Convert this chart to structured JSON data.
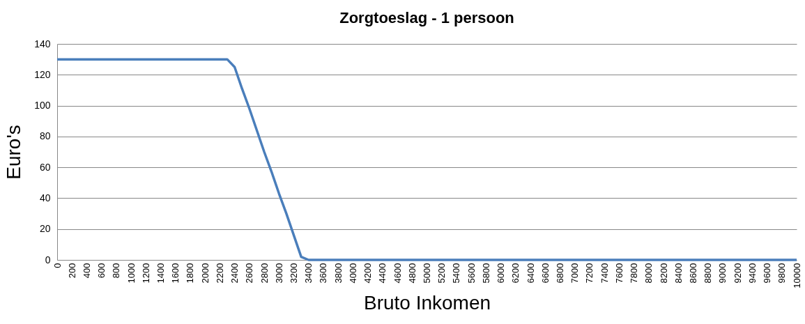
{
  "chart_data": {
    "type": "line",
    "title": "Zorgtoeslag - 1 persoon",
    "xlabel": "Bruto Inkomen",
    "ylabel": "Euro's",
    "categories": [
      "0",
      null,
      "200",
      null,
      "400",
      null,
      "600",
      null,
      "800",
      null,
      "1000",
      null,
      "1200",
      null,
      "1400",
      null,
      "1600",
      null,
      "1800",
      null,
      "2000",
      null,
      "2200",
      null,
      "2400",
      null,
      "2600",
      null,
      "2800",
      null,
      "3000",
      null,
      "3200",
      null,
      "3400",
      null,
      "3600",
      null,
      "3800",
      null,
      "4000",
      null,
      "4200",
      null,
      "4400",
      null,
      "4600",
      null,
      "4800",
      null,
      "5000",
      null,
      "5200",
      null,
      "5400",
      null,
      "5600",
      null,
      "5800",
      null,
      "6000",
      null,
      "6200",
      null,
      "6400",
      null,
      "6600",
      null,
      "6800",
      null,
      "7000",
      null,
      "7200",
      null,
      "7400",
      null,
      "7600",
      null,
      "7800",
      null,
      "8000",
      null,
      "8200",
      null,
      "8400",
      null,
      "8600",
      null,
      "8800",
      null,
      "9000",
      null,
      "9200",
      null,
      "9400",
      null,
      "9600",
      null,
      "9800",
      null,
      "10000"
    ],
    "series": [
      {
        "color": "#4a7ebb",
        "values": [
          130,
          130,
          130,
          130,
          130,
          130,
          130,
          130,
          130,
          130,
          130,
          130,
          130,
          130,
          130,
          130,
          130,
          130,
          130,
          130,
          130,
          130,
          130,
          130,
          125,
          111,
          98,
          84,
          70,
          57,
          43,
          30,
          16,
          2,
          0,
          0,
          0,
          0,
          0,
          0,
          0,
          0,
          0,
          0,
          0,
          0,
          0,
          0,
          0,
          0,
          0,
          0,
          0,
          0,
          0,
          0,
          0,
          0,
          0,
          0,
          0,
          0,
          0,
          0,
          0,
          0,
          0,
          0,
          0,
          0,
          0,
          0,
          0,
          0,
          0,
          0,
          0,
          0,
          0,
          0,
          0,
          0,
          0,
          0,
          0,
          0,
          0,
          0,
          0,
          0,
          0,
          0,
          0,
          0,
          0,
          0,
          0,
          0,
          0,
          0,
          0
        ]
      }
    ],
    "ylim": [
      0,
      140
    ],
    "yticks": [
      0,
      20,
      40,
      60,
      80,
      100,
      120,
      140
    ],
    "grid": "y"
  }
}
